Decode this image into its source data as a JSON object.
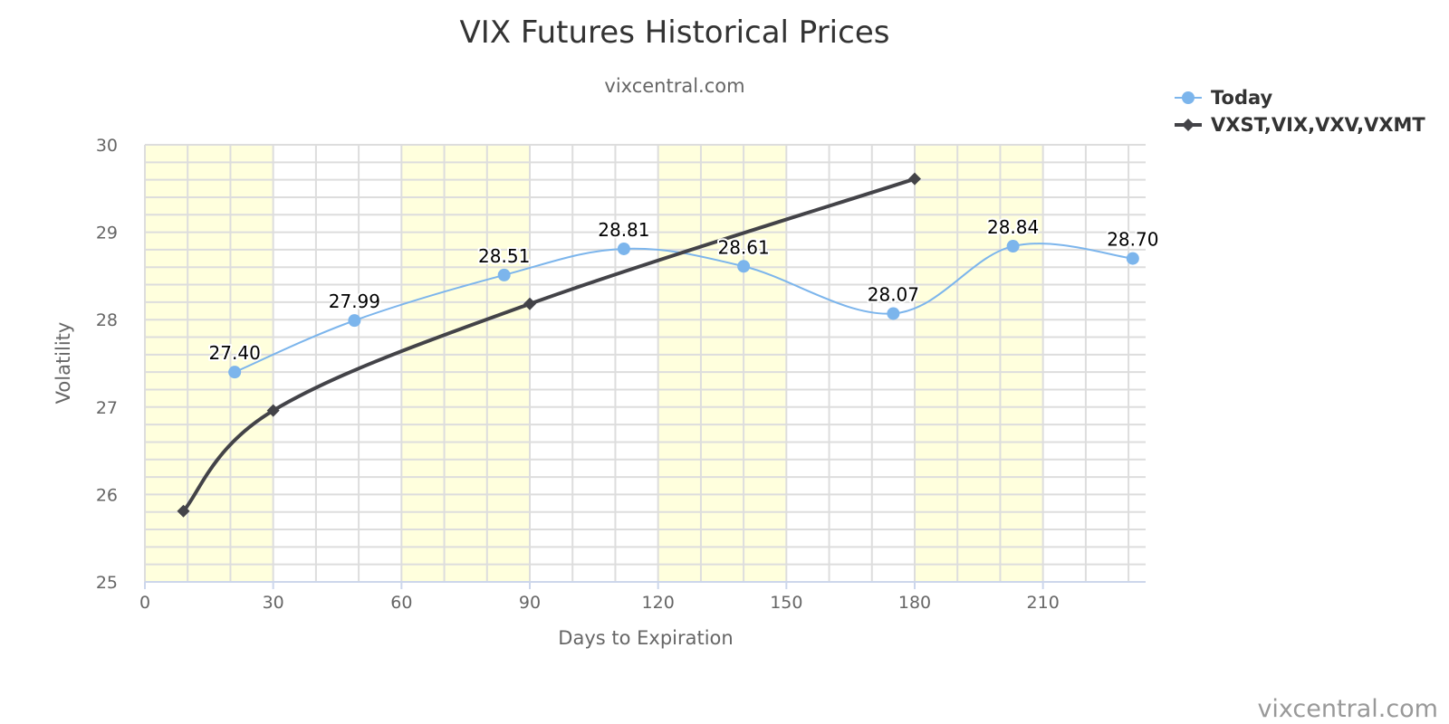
{
  "chart_data": {
    "type": "line",
    "title": "VIX Futures Historical Prices",
    "subtitle": "vixcentral.com",
    "xlabel": "Days to Expiration",
    "ylabel": "Volatility",
    "xlim": [
      0,
      234
    ],
    "ylim": [
      25,
      30
    ],
    "x_ticks": [
      0,
      30,
      60,
      90,
      120,
      150,
      180,
      210
    ],
    "y_ticks": [
      25,
      26,
      27,
      28,
      29,
      30
    ],
    "grid": true,
    "shaded_bands": [
      [
        0,
        30
      ],
      [
        60,
        90
      ],
      [
        120,
        150
      ],
      [
        180,
        210
      ]
    ],
    "legend_position": "top-right",
    "series": [
      {
        "name": "Today",
        "color": "#7cb5ec",
        "marker": "circle",
        "show_labels": true,
        "points": [
          {
            "x": 21,
            "y": 27.4,
            "label": "27.40"
          },
          {
            "x": 49,
            "y": 27.99,
            "label": "27.99"
          },
          {
            "x": 84,
            "y": 28.51,
            "label": "28.51"
          },
          {
            "x": 112,
            "y": 28.81,
            "label": "28.81"
          },
          {
            "x": 140,
            "y": 28.61,
            "label": "28.61"
          },
          {
            "x": 175,
            "y": 28.07,
            "label": "28.07"
          },
          {
            "x": 203,
            "y": 28.84,
            "label": "28.84"
          },
          {
            "x": 231,
            "y": 28.7,
            "label": "28.70"
          }
        ]
      },
      {
        "name": "VXST,VIX,VXV,VXMT",
        "color": "#434348",
        "marker": "diamond",
        "show_labels": false,
        "points": [
          {
            "x": 9,
            "y": 25.81
          },
          {
            "x": 30,
            "y": 26.96
          },
          {
            "x": 90,
            "y": 28.18
          },
          {
            "x": 180,
            "y": 29.61
          }
        ]
      }
    ],
    "credit": "vixcentral.com"
  }
}
